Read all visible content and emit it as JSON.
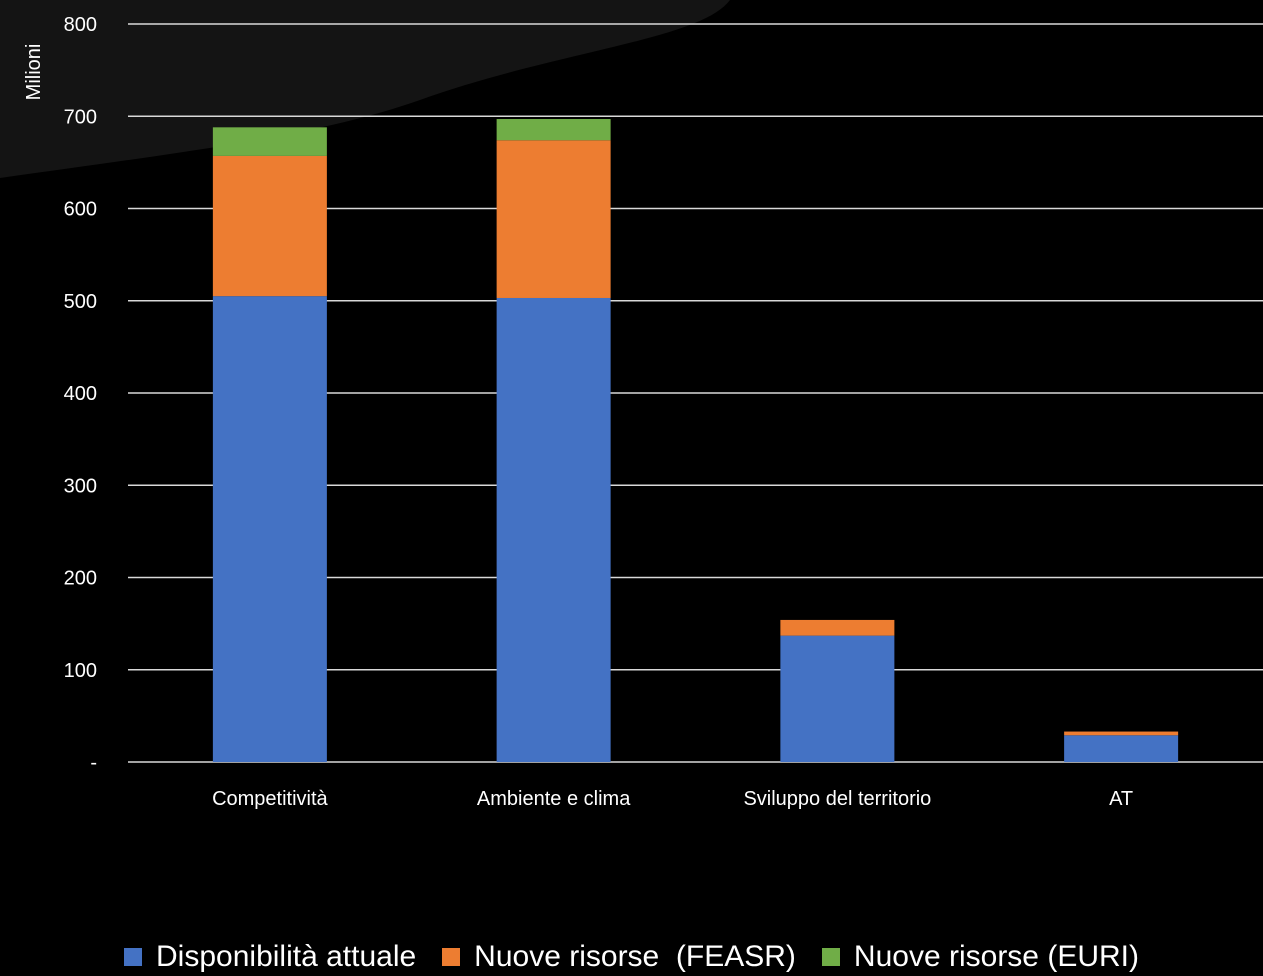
{
  "chart_data": {
    "type": "bar",
    "stacked": true,
    "categories": [
      "Competitività",
      "Ambiente e clima",
      "Sviluppo del territorio",
      "AT"
    ],
    "series": [
      {
        "name": "Disponibilità attuale",
        "color": "#4472C4",
        "values": [
          505,
          503,
          137,
          29
        ]
      },
      {
        "name": "Nuove risorse  (FEASR)",
        "color": "#ED7D31",
        "values": [
          152,
          171,
          17,
          4
        ]
      },
      {
        "name": "Nuove risorse (EURI)",
        "color": "#70AD47",
        "values": [
          31,
          23,
          0,
          0
        ]
      }
    ],
    "ylabel": "Milioni",
    "ylim": [
      0,
      800
    ],
    "yticks": [
      0,
      100,
      200,
      300,
      400,
      500,
      600,
      700,
      800
    ],
    "ytick_labels": [
      "-",
      "100",
      "200",
      "300",
      "400",
      "500",
      "600",
      "700",
      "800"
    ],
    "grid": true,
    "legend_position": "bottom"
  }
}
